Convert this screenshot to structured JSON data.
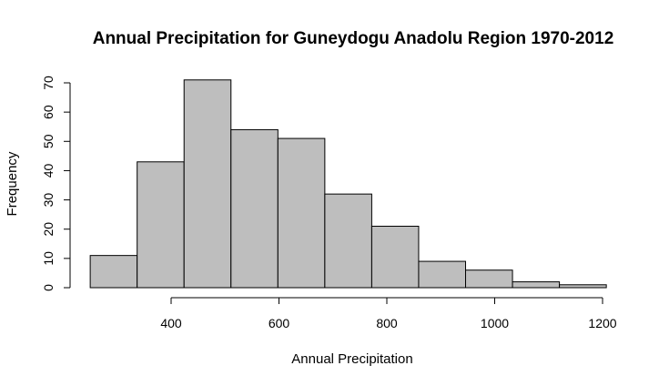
{
  "chart_data": {
    "type": "bar",
    "title": "Annual Precipitation for Guneydogu Anadolu Region 1970-2012",
    "xlabel": "Annual Precipitation",
    "ylabel": "Frequency",
    "bin_edges": [
      250,
      337,
      424,
      511,
      598,
      685,
      772,
      859,
      946,
      1033,
      1120,
      1207
    ],
    "values": [
      11,
      43,
      71,
      54,
      51,
      32,
      21,
      9,
      6,
      2,
      1
    ],
    "xticks": [
      400,
      600,
      800,
      1000,
      1200
    ],
    "yticks": [
      0,
      10,
      20,
      30,
      40,
      50,
      60,
      70
    ],
    "bar_color": "#bebebe",
    "grid": false
  }
}
